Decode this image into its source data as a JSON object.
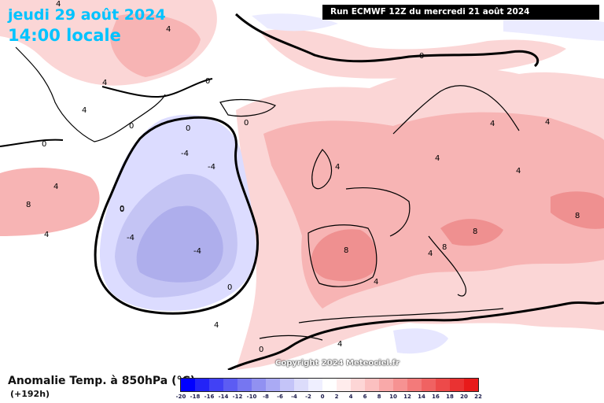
{
  "header": {
    "date_text": "jeudi 29 août 2024",
    "time_text": "14:00 locale",
    "run_text": "Run ECMWF 12Z du mercredi 21 août 2024"
  },
  "footer": {
    "legend_title": "Anomalie Temp. à 850hPa (°C)",
    "forecast_hours": "(+192h)",
    "copyright": "Copyright 2024 Meteociel.fr"
  },
  "colors": {
    "title_blue": "#00c3ff",
    "warm_light": "#fbd6d6",
    "warm_mid": "#f7b4b4",
    "warm_strong": "#ef9090",
    "cold_light": "#dcdcff",
    "cold_mid": "#c4c4f4",
    "cold_strong": "#aeaeec"
  },
  "map": {
    "contour_labels": [
      "4",
      "4",
      "4",
      "4",
      "0",
      "0",
      "0",
      "0",
      "4",
      "0",
      "-4",
      "-4",
      "-4",
      "0",
      "0",
      "4",
      "8",
      "-4",
      "4",
      "4",
      "4",
      "4",
      "8",
      "4",
      "8",
      "8",
      "4",
      "8",
      "4",
      "4",
      "0",
      "4",
      "0",
      "0"
    ]
  },
  "colorbar": {
    "labels": [
      "-20",
      "-18",
      "-16",
      "-14",
      "-12",
      "-10",
      "-8",
      "-6",
      "-4",
      "-2",
      "0",
      "2",
      "4",
      "6",
      "8",
      "10",
      "12",
      "14",
      "16",
      "18",
      "20",
      "22"
    ],
    "colors": [
      "#0000ff",
      "#2323f7",
      "#4141f5",
      "#5c5cf3",
      "#7676f1",
      "#9191f1",
      "#aaaaf4",
      "#c4c4f8",
      "#dcdcfb",
      "#efefff",
      "#ffffff",
      "#ffecec",
      "#fdd6d6",
      "#fbc0c0",
      "#f9a9a9",
      "#f69292",
      "#f37a7a",
      "#f06262",
      "#ed4a4a",
      "#ea3232",
      "#e81a1a"
    ]
  }
}
